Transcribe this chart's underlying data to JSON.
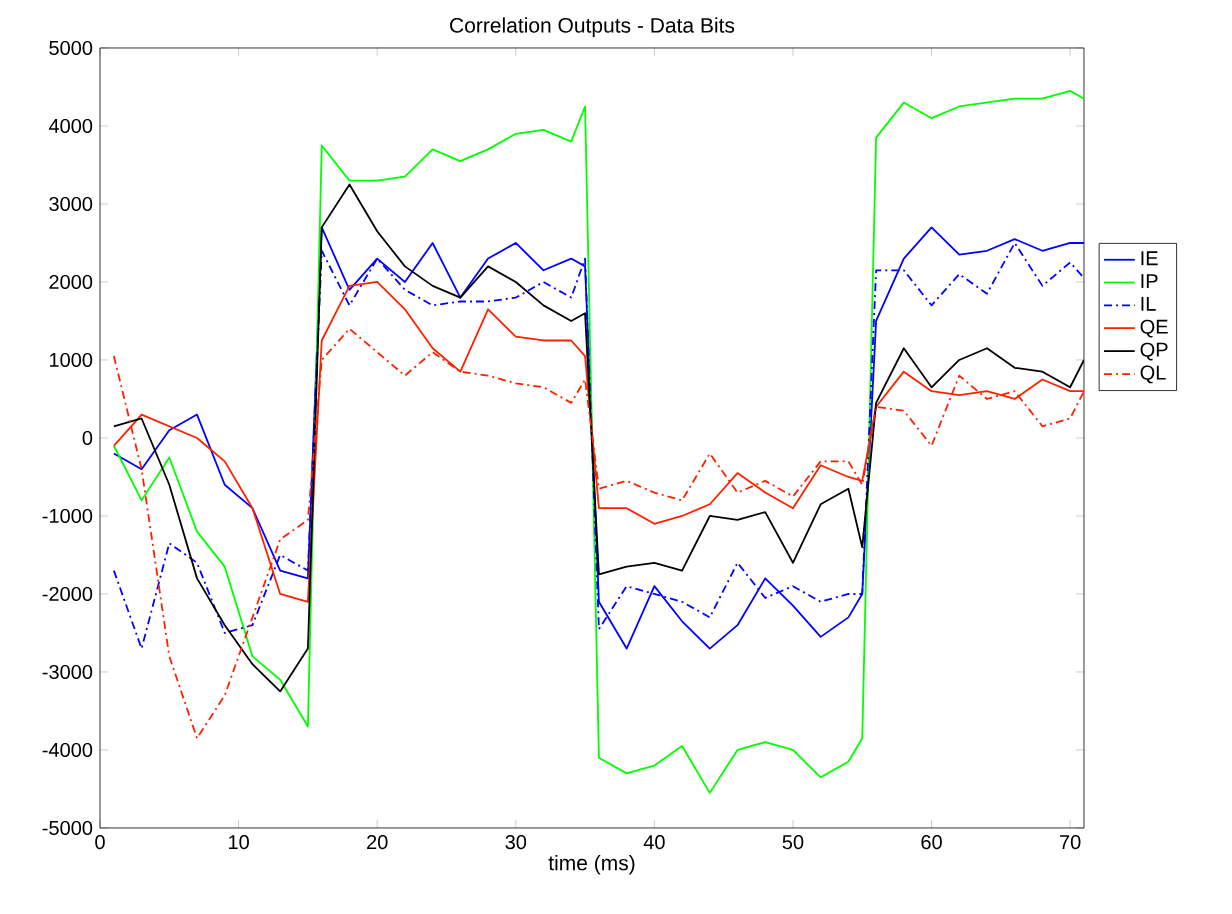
{
  "chart_data": {
    "type": "line",
    "title": "Correlation Outputs - Data Bits",
    "xlabel": "time (ms)",
    "x": [
      1,
      3,
      5,
      7,
      9,
      11,
      13,
      15,
      16,
      18,
      20,
      22,
      24,
      26,
      28,
      30,
      32,
      34,
      35,
      36,
      38,
      40,
      42,
      44,
      46,
      48,
      50,
      52,
      54,
      55,
      56,
      58,
      60,
      62,
      64,
      66,
      68,
      70,
      71
    ],
    "xlim": [
      0,
      71
    ],
    "ylim": [
      -5000,
      5000
    ],
    "xticks": [
      0,
      10,
      20,
      30,
      40,
      50,
      60,
      70
    ],
    "yticks": [
      -5000,
      -4000,
      -3000,
      -2000,
      -1000,
      0,
      1000,
      2000,
      3000,
      4000,
      5000
    ],
    "grid": false,
    "legend": "right",
    "marker": "none",
    "series": [
      {
        "name": "IE",
        "color": "#0000ff",
        "line_style": "solid",
        "values": [
          -200,
          -400,
          100,
          300,
          -600,
          -900,
          -1700,
          -1800,
          2700,
          1900,
          2300,
          2000,
          2500,
          1800,
          2300,
          2500,
          2150,
          2300,
          2200,
          -2100,
          -2700,
          -1900,
          -2350,
          -2700,
          -2400,
          -1800,
          -2150,
          -2550,
          -2300,
          -2000,
          1500,
          2300,
          2700,
          2350,
          2400,
          2550,
          2400,
          2500,
          2500
        ]
      },
      {
        "name": "IP",
        "color": "#00ff00",
        "line_style": "solid",
        "values": [
          -100,
          -800,
          -250,
          -1200,
          -1650,
          -2800,
          -3100,
          -3700,
          3750,
          3300,
          3300,
          3350,
          3700,
          3550,
          3700,
          3900,
          3950,
          3800,
          4250,
          -4100,
          -4300,
          -4200,
          -3950,
          -4550,
          -4000,
          -3900,
          -4000,
          -4350,
          -4150,
          -3850,
          3850,
          4300,
          4100,
          4250,
          4300,
          4350,
          4350,
          4450,
          4350
        ]
      },
      {
        "name": "IL",
        "color": "#0000ff",
        "line_style": "dashdot",
        "values": [
          -1700,
          -2700,
          -1350,
          -1600,
          -2500,
          -2400,
          -1500,
          -1700,
          2400,
          1700,
          2300,
          1900,
          1700,
          1750,
          1750,
          1800,
          2000,
          1800,
          2300,
          -2450,
          -1900,
          -2000,
          -2100,
          -2300,
          -1600,
          -2050,
          -1900,
          -2100,
          -2000,
          -2000,
          2150,
          2150,
          1700,
          2100,
          1850,
          2500,
          1950,
          2250,
          2050
        ]
      },
      {
        "name": "QE",
        "color": "#ff2000",
        "line_style": "solid",
        "values": [
          -100,
          300,
          150,
          0,
          -300,
          -900,
          -2000,
          -2100,
          1250,
          1950,
          2000,
          1650,
          1150,
          850,
          1650,
          1300,
          1250,
          1250,
          1050,
          -900,
          -900,
          -1100,
          -1000,
          -850,
          -450,
          -700,
          -900,
          -350,
          -500,
          -550,
          400,
          850,
          600,
          550,
          600,
          500,
          750,
          600,
          600
        ]
      },
      {
        "name": "QP",
        "color": "#000000",
        "line_style": "solid",
        "values": [
          150,
          250,
          -600,
          -1800,
          -2400,
          -2900,
          -3250,
          -2700,
          2700,
          3250,
          2650,
          2200,
          1950,
          1800,
          2200,
          2000,
          1700,
          1500,
          1600,
          -1750,
          -1650,
          -1600,
          -1700,
          -1000,
          -1050,
          -950,
          -1600,
          -850,
          -650,
          -1400,
          450,
          1150,
          650,
          1000,
          1150,
          900,
          850,
          650,
          1000
        ]
      },
      {
        "name": "QL",
        "color": "#ff2000",
        "line_style": "dashdot",
        "values": [
          1050,
          -400,
          -2800,
          -3850,
          -3300,
          -2300,
          -1300,
          -1050,
          1000,
          1400,
          1100,
          800,
          1100,
          850,
          800,
          700,
          650,
          450,
          750,
          -650,
          -550,
          -700,
          -800,
          -200,
          -700,
          -550,
          -750,
          -300,
          -300,
          -600,
          400,
          350,
          -100,
          800,
          500,
          600,
          150,
          250,
          600
        ]
      }
    ]
  }
}
